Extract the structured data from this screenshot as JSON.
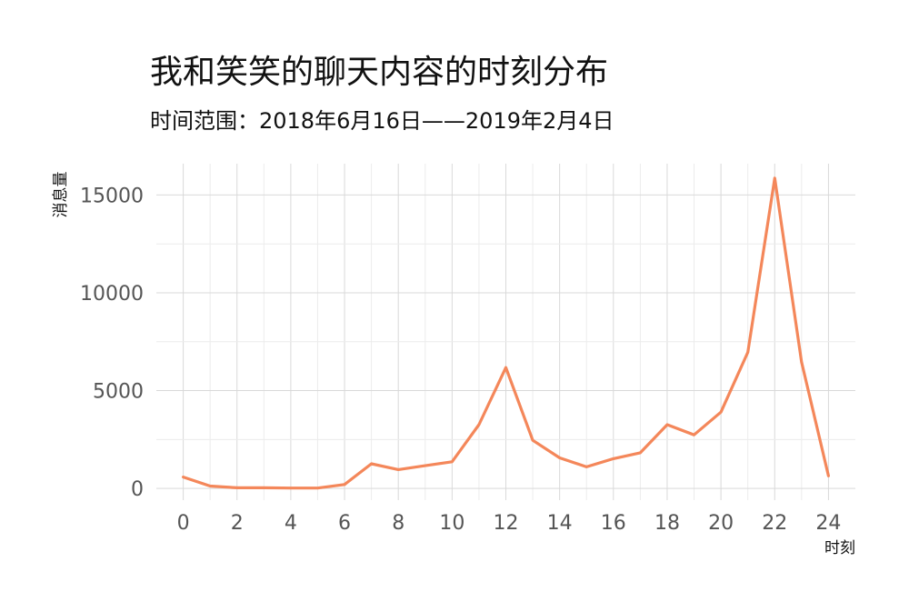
{
  "chart_data": {
    "type": "line",
    "title": "我和笑笑的聊天内容的时刻分布",
    "subtitle": "时间范围：2018年6月16日——2019年2月4日",
    "xlabel": "时刻",
    "ylabel": "消息量",
    "xlim": [
      -1,
      25
    ],
    "ylim": [
      -600,
      16600
    ],
    "x_ticks": [
      0,
      2,
      4,
      6,
      8,
      10,
      12,
      14,
      16,
      18,
      20,
      22,
      24
    ],
    "y_ticks": [
      0,
      5000,
      10000,
      15000
    ],
    "grid": true,
    "series": [
      {
        "color": "#F4875A",
        "x": [
          0,
          1,
          2,
          3,
          4,
          5,
          6,
          7,
          8,
          9,
          10,
          11,
          12,
          13,
          14,
          15,
          16,
          17,
          18,
          19,
          20,
          21,
          22,
          23,
          24
        ],
        "y": [
          580,
          120,
          30,
          30,
          20,
          20,
          200,
          1260,
          960,
          1160,
          1360,
          3260,
          6180,
          2460,
          1560,
          1100,
          1520,
          1820,
          3260,
          2740,
          3900,
          6960,
          15860,
          6460,
          640
        ]
      }
    ]
  }
}
